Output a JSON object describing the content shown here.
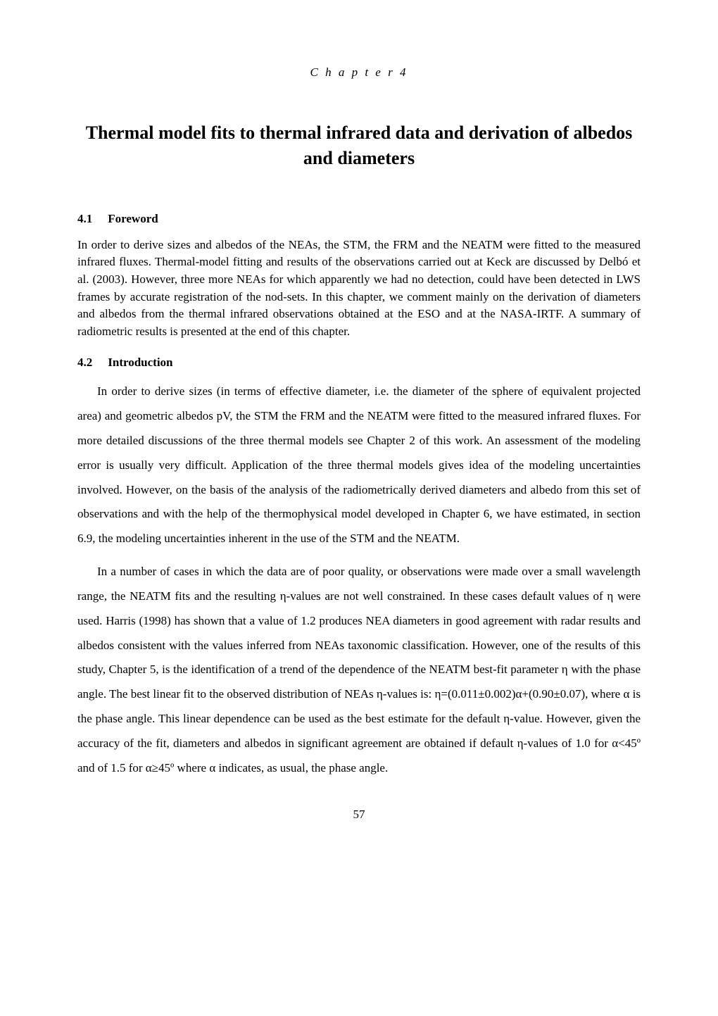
{
  "chapter": {
    "label": "C h a p t e r   4",
    "title": "Thermal model fits to thermal infrared data and derivation of albedos and diameters"
  },
  "sections": [
    {
      "number": "4.1",
      "heading": "Foreword",
      "paragraphs": [
        {
          "indent": false,
          "spaced": false,
          "text": "In order to derive sizes and albedos of the NEAs, the STM, the FRM and the NEATM were fitted to the measured infrared fluxes. Thermal-model fitting and results of the observations carried out at Keck are discussed by Delbó et al. (2003). However, three more NEAs for which apparently we had no detection, could have been detected in LWS frames by accurate registration of the nod-sets. In this chapter, we comment mainly on the derivation of diameters and albedos from the thermal infrared observations obtained at the ESO and at the NASA-IRTF. A summary of radiometric results is presented at the end of this chapter."
        }
      ]
    },
    {
      "number": "4.2",
      "heading": "Introduction",
      "paragraphs": [
        {
          "indent": true,
          "spaced": true,
          "text": "In order to derive sizes (in terms of effective diameter, i.e. the diameter of the sphere of equivalent projected area) and geometric albedos pV, the STM the FRM and the NEATM were fitted to the measured infrared fluxes. For more detailed discussions of the three thermal models see Chapter 2 of this work. An assessment of the modeling error is usually very difficult. Application of the three thermal models gives idea of the modeling uncertainties involved. However, on the basis of the analysis of the radiometrically derived diameters and albedo from this set of observations and with the help of the thermophysical model developed in Chapter 6, we have estimated, in section 6.9, the modeling uncertainties inherent in the use of the STM and the NEATM."
        },
        {
          "indent": true,
          "spaced": true,
          "text": "In a number of cases in which the data are of poor quality, or observations were made over a small wavelength range, the NEATM fits and the resulting η-values are not well constrained. In these cases default values of η were used. Harris (1998) has shown that a value of 1.2 produces NEA diameters in good agreement with radar results and albedos consistent with the values inferred from NEAs taxonomic classification. However, one of the results of this study, Chapter 5, is the identification of a trend of the dependence of the NEATM best-fit parameter η with the phase angle. The best linear fit to the observed distribution of NEAs η-values is: η=(0.011±0.002)α+(0.90±0.07), where α is the phase angle. This linear dependence can be used as the best estimate for the default η-value. However, given the accuracy of the fit, diameters and albedos in significant agreement are obtained if default η-values of 1.0 for α<45º and of 1.5 for α≥45º where α indicates, as usual, the phase angle."
        }
      ]
    }
  ],
  "pageNumber": "57"
}
